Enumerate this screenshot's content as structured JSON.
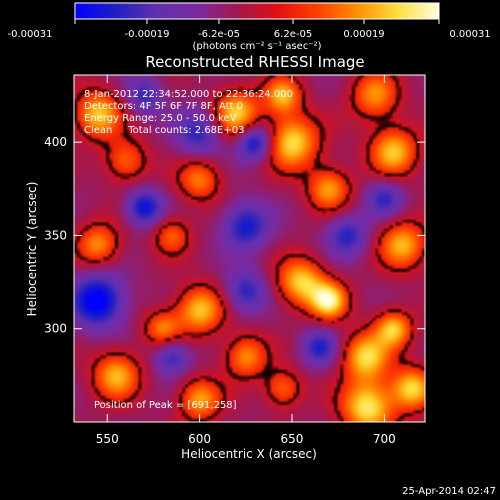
{
  "colorbar": {
    "tick_labels": [
      "-0.00031",
      "-0.00019",
      "-6.2e-05",
      "6.2e-05",
      "0.00019",
      "0.00031"
    ],
    "unit_label": "(photons cm⁻² s⁻¹ asec⁻²)",
    "range": [
      -0.00031,
      0.00031
    ]
  },
  "chart_data": {
    "type": "heatmap",
    "title": "Reconstructed RHESSI Image",
    "xlabel": "Heliocentric X (arcsec)",
    "ylabel": "Heliocentric Y (arcsec)",
    "xlim": [
      532,
      722
    ],
    "ylim": [
      250,
      436
    ],
    "x_ticks": [
      550,
      600,
      650,
      700
    ],
    "y_ticks": [
      300,
      350,
      400
    ],
    "annotations": [
      "8-Jan-2012 22:34:52.000 to 22:36:24.000",
      "Detectors: 4F 5F 6F 7F 8F, Att 0",
      "Energy Range: 25.0 - 50.0 keV",
      "Clean     Total counts: 2.68E+03"
    ],
    "peak_label": "Position of Peak = [691,258]",
    "peak_position": [
      691,
      258
    ],
    "colormap": [
      "#0000ff",
      "#2020c0",
      "#6030b0",
      "#7a2aa0",
      "#a01850",
      "#e01010",
      "#ff4000",
      "#ff9000",
      "#ffe040",
      "#ffffe0"
    ],
    "bright_sources": [
      {
        "x": 545,
        "y": 415,
        "v": 0.85,
        "r": 9
      },
      {
        "x": 560,
        "y": 390,
        "v": 0.6,
        "r": 8
      },
      {
        "x": 620,
        "y": 415,
        "v": 0.9,
        "r": 9
      },
      {
        "x": 650,
        "y": 400,
        "v": 0.95,
        "r": 10
      },
      {
        "x": 645,
        "y": 425,
        "v": 0.8,
        "r": 7
      },
      {
        "x": 695,
        "y": 425,
        "v": 0.7,
        "r": 9
      },
      {
        "x": 705,
        "y": 395,
        "v": 0.85,
        "r": 9
      },
      {
        "x": 670,
        "y": 375,
        "v": 0.75,
        "r": 8
      },
      {
        "x": 600,
        "y": 380,
        "v": 0.65,
        "r": 8
      },
      {
        "x": 545,
        "y": 345,
        "v": 0.7,
        "r": 8
      },
      {
        "x": 585,
        "y": 350,
        "v": 0.55,
        "r": 7
      },
      {
        "x": 710,
        "y": 345,
        "v": 0.8,
        "r": 9
      },
      {
        "x": 655,
        "y": 325,
        "v": 0.9,
        "r": 9
      },
      {
        "x": 670,
        "y": 315,
        "v": 1.0,
        "r": 7
      },
      {
        "x": 600,
        "y": 310,
        "v": 0.85,
        "r": 9
      },
      {
        "x": 580,
        "y": 300,
        "v": 0.65,
        "r": 7
      },
      {
        "x": 625,
        "y": 285,
        "v": 0.7,
        "r": 8
      },
      {
        "x": 555,
        "y": 275,
        "v": 0.8,
        "r": 9
      },
      {
        "x": 600,
        "y": 262,
        "v": 0.75,
        "r": 8
      },
      {
        "x": 645,
        "y": 268,
        "v": 0.6,
        "r": 7
      },
      {
        "x": 690,
        "y": 285,
        "v": 0.9,
        "r": 9
      },
      {
        "x": 705,
        "y": 300,
        "v": 0.85,
        "r": 7
      },
      {
        "x": 691,
        "y": 258,
        "v": 1.0,
        "r": 10
      },
      {
        "x": 715,
        "y": 268,
        "v": 0.9,
        "r": 8
      }
    ],
    "dark_sources": [
      {
        "x": 545,
        "y": 315,
        "v": -0.95,
        "r": 10
      },
      {
        "x": 600,
        "y": 405,
        "v": -0.6,
        "r": 9
      },
      {
        "x": 630,
        "y": 400,
        "v": -0.85,
        "r": 7
      },
      {
        "x": 625,
        "y": 355,
        "v": -0.7,
        "r": 9
      },
      {
        "x": 570,
        "y": 365,
        "v": -0.75,
        "r": 7
      },
      {
        "x": 680,
        "y": 350,
        "v": -0.6,
        "r": 8
      },
      {
        "x": 700,
        "y": 370,
        "v": -0.55,
        "r": 7
      },
      {
        "x": 625,
        "y": 320,
        "v": -0.6,
        "r": 8
      },
      {
        "x": 665,
        "y": 290,
        "v": -0.6,
        "r": 7
      },
      {
        "x": 585,
        "y": 285,
        "v": -0.6,
        "r": 7
      },
      {
        "x": 570,
        "y": 425,
        "v": -0.55,
        "r": 7
      }
    ]
  },
  "footer": {
    "date": "25-Apr-2014 02:47"
  }
}
